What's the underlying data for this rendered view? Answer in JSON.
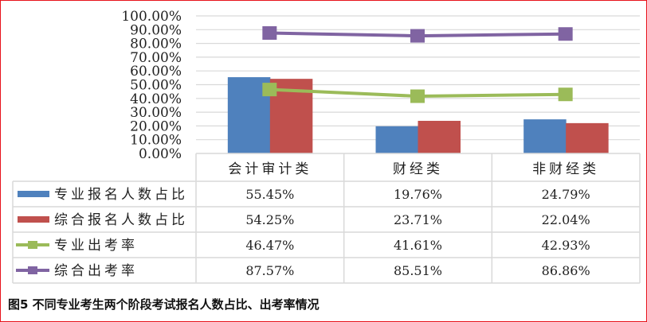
{
  "chart_data": {
    "type": "bar",
    "title": "",
    "xlabel": "",
    "ylabel": "",
    "ylim": [
      0,
      1
    ],
    "yticks": [
      "0.00%",
      "10.00%",
      "20.00%",
      "30.00%",
      "40.00%",
      "50.00%",
      "60.00%",
      "70.00%",
      "80.00%",
      "90.00%",
      "100.00%"
    ],
    "grid": true,
    "legend_position": "data-table-left",
    "categories": [
      "会计审计类",
      "财经类",
      "非财经类"
    ],
    "series": [
      {
        "name": "专业报名人数占比",
        "kind": "bar",
        "color": "#4f81bd",
        "values": [
          0.5545,
          0.1976,
          0.2479
        ],
        "labels": [
          "55.45%",
          "19.76%",
          "24.79%"
        ]
      },
      {
        "name": "综合报名人数占比",
        "kind": "bar",
        "color": "#c0504d",
        "values": [
          0.5425,
          0.2371,
          0.2204
        ],
        "labels": [
          "54.25%",
          "23.71%",
          "22.04%"
        ]
      },
      {
        "name": "专业出考率",
        "kind": "line",
        "color": "#9bbb59",
        "values": [
          0.4647,
          0.4161,
          0.4293
        ],
        "labels": [
          "46.47%",
          "41.61%",
          "42.93%"
        ]
      },
      {
        "name": "综合出考率",
        "kind": "line",
        "color": "#8064a2",
        "values": [
          0.8757,
          0.8551,
          0.8686
        ],
        "labels": [
          "87.57%",
          "85.51%",
          "86.86%"
        ]
      }
    ],
    "data_table": true
  },
  "caption": "图5  不同专业考生两个阶段考试报名人数占比、出考率情况",
  "colors": {
    "frame_border": "#e8131b",
    "gridline": "#d9d9d9",
    "table_border": "#d9d9d9",
    "text": "#222222"
  }
}
